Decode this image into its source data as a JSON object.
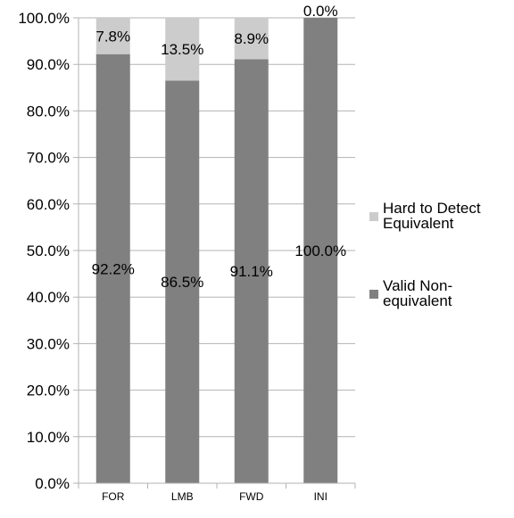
{
  "chart_data": {
    "type": "bar",
    "stacked": true,
    "categories": [
      "FOR",
      "LMB",
      "FWD",
      "INI"
    ],
    "series": [
      {
        "name": "Valid Non-equivalent",
        "values": [
          92.2,
          86.5,
          91.1,
          100.0
        ],
        "labels": [
          "92.2%",
          "86.5%",
          "91.1%",
          "100.0%"
        ],
        "color": "#808080"
      },
      {
        "name": "Hard to Detect Equivalent",
        "values": [
          7.8,
          13.5,
          8.9,
          0.0
        ],
        "labels": [
          "7.8%",
          "13.5%",
          "8.9%",
          "0.0%"
        ],
        "color": "#cccccc"
      }
    ],
    "ylim": [
      0,
      100
    ],
    "y_tick_values": [
      0,
      10,
      20,
      30,
      40,
      50,
      60,
      70,
      80,
      90,
      100
    ],
    "y_tick_labels": [
      "0.0%",
      "10.0%",
      "20.0%",
      "30.0%",
      "40.0%",
      "50.0%",
      "60.0%",
      "70.0%",
      "80.0%",
      "90.0%",
      "100.0%"
    ],
    "grid": true,
    "legend": {
      "placement": "right",
      "entries": [
        {
          "lines": [
            "Hard to Detect",
            "Equivalent"
          ],
          "color": "#cccccc"
        },
        {
          "lines": [
            "Valid Non-",
            "equivalent"
          ],
          "color": "#808080"
        }
      ]
    },
    "title": "",
    "xlabel": "",
    "ylabel": ""
  }
}
